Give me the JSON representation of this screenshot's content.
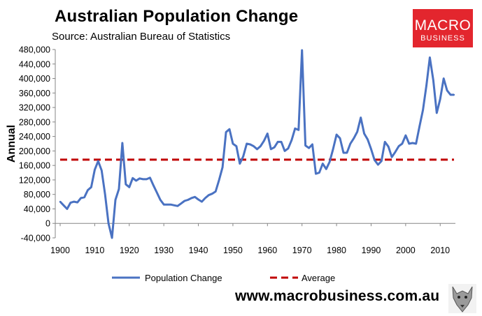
{
  "header": {
    "title": "Australian Population Change",
    "subtitle": "Source: Australian Bureau of Statistics"
  },
  "logo": {
    "line1": "MACRO",
    "line2": "BUSINESS"
  },
  "footer": {
    "url": "www.macrobusiness.com.au"
  },
  "colors": {
    "series": "#4a72c2",
    "average": "#c00000",
    "logo_bg": "#e3262e"
  },
  "chart_data": {
    "type": "line",
    "title": "Australian Population Change",
    "xlabel": "",
    "ylabel": "Annual",
    "xlim": [
      1900,
      2014
    ],
    "ylim": [
      -40000,
      480000
    ],
    "x_ticks": [
      1900,
      1910,
      1920,
      1930,
      1940,
      1950,
      1960,
      1970,
      1980,
      1990,
      2000,
      2010
    ],
    "y_ticks": [
      -40000,
      0,
      40000,
      80000,
      120000,
      160000,
      200000,
      240000,
      280000,
      320000,
      360000,
      400000,
      440000,
      480000
    ],
    "y_tick_labels": [
      "-40,000",
      "0",
      "40,000",
      "80,000",
      "120,000",
      "160,000",
      "200,000",
      "240,000",
      "280,000",
      "320,000",
      "360,000",
      "400,000",
      "440,000",
      "480,000"
    ],
    "x_tick_labels": [
      "1900",
      "1910",
      "1920",
      "1930",
      "1940",
      "1950",
      "1960",
      "1970",
      "1980",
      "1990",
      "2000",
      "2010"
    ],
    "legend_position": "bottom",
    "grid": false,
    "series": [
      {
        "name": "Population Change",
        "style": "solid",
        "x": [
          1900,
          1901,
          1902,
          1903,
          1904,
          1905,
          1906,
          1907,
          1908,
          1909,
          1910,
          1911,
          1912,
          1913,
          1914,
          1915,
          1916,
          1917,
          1918,
          1919,
          1920,
          1921,
          1922,
          1923,
          1924,
          1925,
          1926,
          1927,
          1928,
          1929,
          1930,
          1931,
          1932,
          1933,
          1934,
          1935,
          1936,
          1937,
          1938,
          1939,
          1940,
          1941,
          1942,
          1943,
          1944,
          1945,
          1946,
          1947,
          1948,
          1949,
          1950,
          1951,
          1952,
          1953,
          1954,
          1955,
          1956,
          1957,
          1958,
          1959,
          1960,
          1961,
          1962,
          1963,
          1964,
          1965,
          1966,
          1967,
          1968,
          1969,
          1970,
          1971,
          1972,
          1973,
          1974,
          1975,
          1976,
          1977,
          1978,
          1979,
          1980,
          1981,
          1982,
          1983,
          1984,
          1985,
          1986,
          1987,
          1988,
          1989,
          1990,
          1991,
          1992,
          1993,
          1994,
          1995,
          1996,
          1997,
          1998,
          1999,
          2000,
          2001,
          2002,
          2003,
          2004,
          2005,
          2006,
          2007,
          2008,
          2009,
          2010,
          2011,
          2012,
          2013,
          2014
        ],
        "values": [
          60000,
          50000,
          40000,
          57000,
          60000,
          58000,
          70000,
          72000,
          92000,
          100000,
          148000,
          172000,
          146000,
          80000,
          0,
          -40000,
          65000,
          95000,
          222000,
          108000,
          100000,
          125000,
          118000,
          124000,
          122000,
          122000,
          126000,
          105000,
          85000,
          65000,
          52000,
          52000,
          52000,
          50000,
          48000,
          55000,
          62000,
          65000,
          70000,
          73000,
          66000,
          60000,
          70000,
          78000,
          82000,
          88000,
          120000,
          155000,
          252000,
          260000,
          220000,
          213000,
          165000,
          185000,
          220000,
          218000,
          213000,
          205000,
          213000,
          228000,
          248000,
          205000,
          210000,
          225000,
          225000,
          200000,
          207000,
          230000,
          262000,
          258000,
          478000,
          215000,
          208000,
          218000,
          137000,
          140000,
          165000,
          150000,
          170000,
          205000,
          245000,
          235000,
          195000,
          195000,
          220000,
          235000,
          253000,
          292000,
          248000,
          232000,
          205000,
          175000,
          162000,
          172000,
          225000,
          212000,
          183000,
          197000,
          213000,
          220000,
          243000,
          220000,
          222000,
          220000,
          267000,
          313000,
          380000,
          458000,
          395000,
          305000,
          343000,
          400000,
          367000,
          355000,
          355000
        ]
      },
      {
        "name": "Average",
        "style": "dashed",
        "x": [
          1900,
          2014
        ],
        "values": [
          176000,
          176000
        ]
      }
    ]
  }
}
